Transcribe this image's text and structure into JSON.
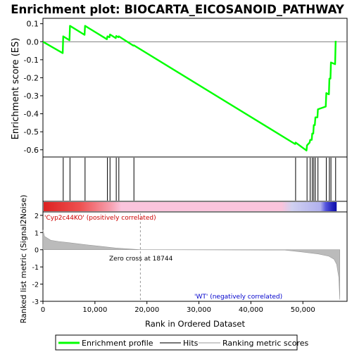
{
  "chart_data": {
    "type": "line",
    "title": "Enrichment plot: BIOCARTA_EICOSANOID_PATHWAY",
    "ylabel_top": "Enrichment score (ES)",
    "ylabel_bottom": "Ranked list metric (Signal2Noise)",
    "xlabel": "Rank in Ordered Dataset",
    "x_ticks": [
      0,
      10000,
      20000,
      30000,
      40000,
      50000
    ],
    "x_tick_labels": [
      "0",
      "10,000",
      "20,000",
      "30,000",
      "40,000",
      "50,000"
    ],
    "xlim": [
      0,
      58500
    ],
    "es_ylim": [
      -0.64,
      0.13
    ],
    "es_ticks": [
      0.1,
      0.0,
      -0.1,
      -0.2,
      -0.3,
      -0.4,
      -0.5,
      -0.6
    ],
    "es_tick_labels": [
      "0.1",
      "0.0",
      "-0.1",
      "-0.2",
      "-0.3",
      "-0.4",
      "-0.5",
      "-0.6"
    ],
    "metric_ylim": [
      -3,
      2.2
    ],
    "metric_ticks": [
      2,
      1,
      0,
      -1,
      -2,
      -3
    ],
    "metric_tick_labels": [
      "2",
      "1",
      "0",
      "-1",
      "-2",
      "-3"
    ],
    "hits": [
      3900,
      5200,
      8100,
      12400,
      12900,
      14100,
      14600,
      17500,
      48600,
      50800,
      51400,
      51800,
      52100,
      52400,
      52900,
      54500,
      55100,
      55400,
      56300
    ],
    "enrichment_profile": {
      "x": [
        0,
        3800,
        3900,
        5100,
        5200,
        8000,
        8100,
        12300,
        12400,
        12800,
        12900,
        14000,
        14100,
        14500,
        14600,
        17400,
        17500,
        48500,
        48600,
        50700,
        50800,
        51300,
        51400,
        51700,
        51800,
        52000,
        52100,
        52300,
        52400,
        52800,
        52900,
        54400,
        54500,
        55000,
        55100,
        55300,
        55400,
        56200,
        56300
      ],
      "y": [
        0.0,
        -0.063,
        0.03,
        0.008,
        0.088,
        0.038,
        0.088,
        0.014,
        0.03,
        0.025,
        0.04,
        0.02,
        0.032,
        0.025,
        0.03,
        -0.022,
        -0.02,
        -0.568,
        -0.56,
        -0.604,
        -0.575,
        -0.56,
        -0.545,
        -0.545,
        -0.51,
        -0.51,
        -0.463,
        -0.463,
        -0.42,
        -0.42,
        -0.375,
        -0.36,
        -0.285,
        -0.292,
        -0.205,
        -0.205,
        -0.115,
        -0.125,
        0.005
      ]
    },
    "ranked_metric": {
      "x": [
        0,
        300,
        1500,
        3000,
        5000,
        8000,
        11000,
        14000,
        17000,
        18744,
        20000,
        46500,
        50000,
        53000,
        55000,
        56000,
        56500,
        56900,
        57100
      ],
      "y": [
        1.15,
        0.78,
        0.55,
        0.48,
        0.41,
        0.3,
        0.2,
        0.1,
        0.04,
        0.0,
        0.0,
        -0.02,
        -0.14,
        -0.25,
        -0.38,
        -0.55,
        -0.85,
        -1.6,
        -2.9
      ]
    },
    "heatmap_gradient": [
      {
        "x": 0,
        "color": "#dd2222"
      },
      {
        "x": 7000,
        "color": "#ee5050"
      },
      {
        "x": 13000,
        "color": "#f7a0b0"
      },
      {
        "x": 15000,
        "color": "#fac4dc"
      },
      {
        "x": 46000,
        "color": "#fac4dc"
      },
      {
        "x": 48000,
        "color": "#d0d0f0"
      },
      {
        "x": 53500,
        "color": "#b0b0ee"
      },
      {
        "x": 54500,
        "color": "#5555dd"
      },
      {
        "x": 55800,
        "color": "#2222bb"
      },
      {
        "x": 56500,
        "color": "#1010aa"
      }
    ],
    "zero_cross": 18744,
    "annotations": {
      "pos_label": "'Cyp2c44KO' (positively correlated)",
      "neg_label": "'WT' (negatively correlated)",
      "zero_cross_label": "Zero cross at 18744"
    },
    "legend": [
      "Enrichment profile",
      "Hits",
      "Ranking metric scores"
    ],
    "colors": {
      "profile": "#00ff00",
      "hits": "#000000",
      "metric": "#bbbbbb",
      "pos_label": "#cc0000",
      "neg_label": "#0000cc",
      "zero_line": "#999999"
    }
  }
}
